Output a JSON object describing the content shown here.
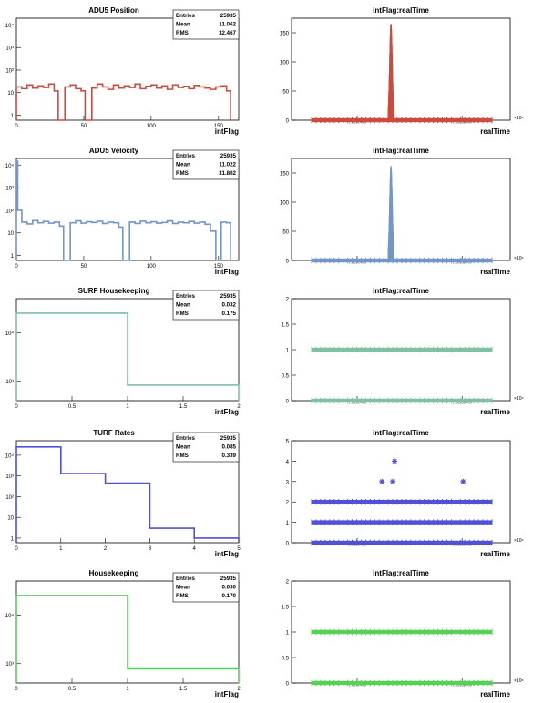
{
  "colors": {
    "red": "#cc4a3e",
    "blue_light": "#7396c8",
    "teal": "#7fc1a2",
    "purple": "#5050d8",
    "green": "#58d058",
    "axis": "#000000"
  },
  "chart_data": [
    {
      "type": "histogram",
      "title": "ADU5 Position",
      "xlabel": "intFlag",
      "ylabel": "",
      "log_y": true,
      "xlim": [
        0,
        165
      ],
      "ylim": [
        0.6,
        20000
      ],
      "x_ticks": [
        "0",
        "50",
        "100",
        "150"
      ],
      "x_tick_values": [
        0,
        50,
        100,
        150
      ],
      "y_ticks": [
        "1",
        "10",
        "10²",
        "10³",
        "10⁴"
      ],
      "y_tick_values": [
        1,
        10,
        100,
        1000,
        10000
      ],
      "stats": [
        {
          "label": "Entries",
          "value": "25935"
        },
        {
          "label": "Mean",
          "value": "11.062"
        },
        {
          "label": "RMS",
          "value": "32.467"
        }
      ],
      "color_key": "red",
      "bins": [
        {
          "x0": 0,
          "x1": 4,
          "y": 18
        },
        {
          "x0": 4,
          "x1": 8,
          "y": 15
        },
        {
          "x0": 8,
          "x1": 12,
          "y": 22
        },
        {
          "x0": 12,
          "x1": 16,
          "y": 16
        },
        {
          "x0": 16,
          "x1": 20,
          "y": 20
        },
        {
          "x0": 20,
          "x1": 24,
          "y": 17
        },
        {
          "x0": 24,
          "x1": 28,
          "y": 24
        },
        {
          "x0": 28,
          "x1": 31,
          "y": 12
        },
        {
          "x0": 31,
          "x1": 36,
          "y": 0.6
        },
        {
          "x0": 36,
          "x1": 40,
          "y": 18
        },
        {
          "x0": 40,
          "x1": 44,
          "y": 22
        },
        {
          "x0": 44,
          "x1": 48,
          "y": 15
        },
        {
          "x0": 48,
          "x1": 51,
          "y": 12
        },
        {
          "x0": 51,
          "x1": 56,
          "y": 0.6
        },
        {
          "x0": 56,
          "x1": 60,
          "y": 16
        },
        {
          "x0": 60,
          "x1": 64,
          "y": 24
        },
        {
          "x0": 64,
          "x1": 68,
          "y": 18
        },
        {
          "x0": 68,
          "x1": 72,
          "y": 14
        },
        {
          "x0": 72,
          "x1": 76,
          "y": 22
        },
        {
          "x0": 76,
          "x1": 80,
          "y": 16
        },
        {
          "x0": 80,
          "x1": 84,
          "y": 20
        },
        {
          "x0": 84,
          "x1": 88,
          "y": 17
        },
        {
          "x0": 88,
          "x1": 92,
          "y": 24
        },
        {
          "x0": 92,
          "x1": 96,
          "y": 15
        },
        {
          "x0": 96,
          "x1": 100,
          "y": 19
        },
        {
          "x0": 100,
          "x1": 104,
          "y": 22
        },
        {
          "x0": 104,
          "x1": 108,
          "y": 16
        },
        {
          "x0": 108,
          "x1": 112,
          "y": 20
        },
        {
          "x0": 112,
          "x1": 116,
          "y": 14
        },
        {
          "x0": 116,
          "x1": 120,
          "y": 22
        },
        {
          "x0": 120,
          "x1": 124,
          "y": 17
        },
        {
          "x0": 124,
          "x1": 128,
          "y": 19
        },
        {
          "x0": 128,
          "x1": 132,
          "y": 15
        },
        {
          "x0": 132,
          "x1": 136,
          "y": 21
        },
        {
          "x0": 136,
          "x1": 140,
          "y": 18
        },
        {
          "x0": 140,
          "x1": 144,
          "y": 16
        },
        {
          "x0": 144,
          "x1": 148,
          "y": 14
        },
        {
          "x0": 148,
          "x1": 152,
          "y": 18
        },
        {
          "x0": 152,
          "x1": 156,
          "y": 20
        },
        {
          "x0": 156,
          "x1": 159,
          "y": 12
        },
        {
          "x0": 159,
          "x1": 160,
          "y": 0.6
        }
      ]
    },
    {
      "type": "scatter",
      "title": "intFlag:realTime",
      "xlabel": "realTime",
      "ylabel": "",
      "ylim": [
        0,
        175
      ],
      "y_ticks": [
        "0",
        "50",
        "100",
        "150"
      ],
      "y_tick_values": [
        0,
        50,
        100,
        150
      ],
      "x_ticks": [
        "1.163e+09",
        "1.1635e+09"
      ],
      "x_tick_fractions": [
        0.3,
        0.78
      ],
      "x_exponent": "×10⁶",
      "color_key": "red",
      "baseline_y": [
        0
      ],
      "baseline_range": [
        0.0,
        1.0
      ],
      "spike": {
        "center": 0.44,
        "width": 0.03,
        "max": 163
      },
      "outliers": []
    },
    {
      "type": "histogram",
      "title": "ADU5 Velocity",
      "xlabel": "intFlag",
      "ylabel": "",
      "log_y": true,
      "xlim": [
        0,
        165
      ],
      "ylim": [
        0.6,
        20000
      ],
      "x_ticks": [
        "0",
        "50",
        "100",
        "150"
      ],
      "x_tick_values": [
        0,
        50,
        100,
        150
      ],
      "y_ticks": [
        "1",
        "10",
        "10²",
        "10³",
        "10⁴"
      ],
      "y_tick_values": [
        1,
        10,
        100,
        1000,
        10000
      ],
      "stats": [
        {
          "label": "Entries",
          "value": "25935"
        },
        {
          "label": "Mean",
          "value": "11.022"
        },
        {
          "label": "RMS",
          "value": "31.802"
        }
      ],
      "color_key": "blue_light",
      "bins": [
        {
          "x0": 0,
          "x1": 1,
          "y": 15000
        },
        {
          "x0": 1,
          "x1": 4,
          "y": 100
        },
        {
          "x0": 4,
          "x1": 8,
          "y": 30
        },
        {
          "x0": 8,
          "x1": 12,
          "y": 25
        },
        {
          "x0": 12,
          "x1": 16,
          "y": 35
        },
        {
          "x0": 16,
          "x1": 20,
          "y": 28
        },
        {
          "x0": 20,
          "x1": 24,
          "y": 32
        },
        {
          "x0": 24,
          "x1": 28,
          "y": 27
        },
        {
          "x0": 28,
          "x1": 32,
          "y": 30
        },
        {
          "x0": 32,
          "x1": 35,
          "y": 20
        },
        {
          "x0": 35,
          "x1": 40,
          "y": 0.6
        },
        {
          "x0": 40,
          "x1": 44,
          "y": 28
        },
        {
          "x0": 44,
          "x1": 48,
          "y": 34
        },
        {
          "x0": 48,
          "x1": 52,
          "y": 27
        },
        {
          "x0": 52,
          "x1": 56,
          "y": 31
        },
        {
          "x0": 56,
          "x1": 60,
          "y": 29
        },
        {
          "x0": 60,
          "x1": 64,
          "y": 33
        },
        {
          "x0": 64,
          "x1": 68,
          "y": 26
        },
        {
          "x0": 68,
          "x1": 72,
          "y": 30
        },
        {
          "x0": 72,
          "x1": 76,
          "y": 28
        },
        {
          "x0": 76,
          "x1": 79,
          "y": 18
        },
        {
          "x0": 79,
          "x1": 84,
          "y": 0.6
        },
        {
          "x0": 84,
          "x1": 88,
          "y": 30
        },
        {
          "x0": 88,
          "x1": 92,
          "y": 26
        },
        {
          "x0": 92,
          "x1": 96,
          "y": 33
        },
        {
          "x0": 96,
          "x1": 100,
          "y": 28
        },
        {
          "x0": 100,
          "x1": 104,
          "y": 31
        },
        {
          "x0": 104,
          "x1": 108,
          "y": 27
        },
        {
          "x0": 108,
          "x1": 112,
          "y": 29
        },
        {
          "x0": 112,
          "x1": 116,
          "y": 34
        },
        {
          "x0": 116,
          "x1": 120,
          "y": 26
        },
        {
          "x0": 120,
          "x1": 124,
          "y": 30
        },
        {
          "x0": 124,
          "x1": 128,
          "y": 28
        },
        {
          "x0": 128,
          "x1": 132,
          "y": 32
        },
        {
          "x0": 132,
          "x1": 136,
          "y": 27
        },
        {
          "x0": 136,
          "x1": 140,
          "y": 30
        },
        {
          "x0": 140,
          "x1": 144,
          "y": 24
        },
        {
          "x0": 144,
          "x1": 148,
          "y": 12
        },
        {
          "x0": 148,
          "x1": 152,
          "y": 0.6
        },
        {
          "x0": 152,
          "x1": 156,
          "y": 30
        },
        {
          "x0": 156,
          "x1": 159,
          "y": 28
        },
        {
          "x0": 159,
          "x1": 160,
          "y": 0.6
        }
      ]
    },
    {
      "type": "scatter",
      "title": "intFlag:realTime",
      "xlabel": "realTime",
      "ylabel": "",
      "ylim": [
        0,
        175
      ],
      "y_ticks": [
        "0",
        "50",
        "100",
        "150"
      ],
      "y_tick_values": [
        0,
        50,
        100,
        150
      ],
      "x_ticks": [
        "1.163e+09",
        "1.1635e+09"
      ],
      "x_tick_fractions": [
        0.3,
        0.78
      ],
      "x_exponent": "×10⁶",
      "color_key": "blue_light",
      "baseline_y": [
        0
      ],
      "baseline_range": [
        0.0,
        1.0
      ],
      "spike": {
        "center": 0.44,
        "width": 0.03,
        "max": 160
      },
      "outliers": []
    },
    {
      "type": "histogram",
      "title": "SURF Housekeeping",
      "xlabel": "intFlag",
      "ylabel": "",
      "log_y": true,
      "xlim": [
        0,
        2
      ],
      "ylim": [
        400,
        50000
      ],
      "x_ticks": [
        "0",
        "0.5",
        "1",
        "1.5",
        "2"
      ],
      "x_tick_values": [
        0,
        0.5,
        1,
        1.5,
        2
      ],
      "y_ticks": [
        "10³",
        "10⁴"
      ],
      "y_tick_values": [
        1000,
        10000
      ],
      "stats": [
        {
          "label": "Entries",
          "value": "25935"
        },
        {
          "label": "Mean",
          "value": "0.032"
        },
        {
          "label": "RMS",
          "value": "0.175"
        }
      ],
      "color_key": "teal",
      "bins": [
        {
          "x0": 0,
          "x1": 1,
          "y": 25100
        },
        {
          "x0": 1,
          "x1": 2,
          "y": 835
        }
      ]
    },
    {
      "type": "scatter",
      "title": "intFlag:realTime",
      "xlabel": "realTime",
      "ylabel": "",
      "ylim": [
        0,
        2
      ],
      "y_ticks": [
        "0",
        "0.5",
        "1",
        "1.5",
        "2"
      ],
      "y_tick_values": [
        0,
        0.5,
        1,
        1.5,
        2
      ],
      "x_ticks": [
        "1.163e+09",
        "1.1635e+09"
      ],
      "x_tick_fractions": [
        0.3,
        0.78
      ],
      "x_exponent": "×10⁶",
      "color_key": "teal",
      "baseline_y": [
        0,
        1
      ],
      "baseline_range": [
        0.0,
        1.0
      ],
      "spike": null,
      "outliers": []
    },
    {
      "type": "histogram",
      "title": "TURF Rates",
      "xlabel": "intFlag",
      "ylabel": "",
      "log_y": true,
      "xlim": [
        0,
        5
      ],
      "ylim": [
        0.6,
        50000
      ],
      "x_ticks": [
        "0",
        "1",
        "2",
        "3",
        "4",
        "5"
      ],
      "x_tick_values": [
        0,
        1,
        2,
        3,
        4,
        5
      ],
      "y_ticks": [
        "1",
        "10",
        "10²",
        "10³",
        "10⁴"
      ],
      "y_tick_values": [
        1,
        10,
        100,
        1000,
        10000
      ],
      "stats": [
        {
          "label": "Entries",
          "value": "25935"
        },
        {
          "label": "Mean",
          "value": "0.085"
        },
        {
          "label": "RMS",
          "value": "0.339"
        }
      ],
      "color_key": "purple",
      "bins": [
        {
          "x0": 0,
          "x1": 1,
          "y": 25000
        },
        {
          "x0": 1,
          "x1": 2,
          "y": 1300
        },
        {
          "x0": 2,
          "x1": 3,
          "y": 450
        },
        {
          "x0": 3,
          "x1": 4,
          "y": 3
        },
        {
          "x0": 4,
          "x1": 5,
          "y": 1
        }
      ]
    },
    {
      "type": "scatter",
      "title": "intFlag:realTime",
      "xlabel": "realTime",
      "ylabel": "",
      "ylim": [
        0,
        5
      ],
      "y_ticks": [
        "0",
        "1",
        "2",
        "3",
        "4",
        "5"
      ],
      "y_tick_values": [
        0,
        1,
        2,
        3,
        4,
        5
      ],
      "x_ticks": [
        "1.163e+09",
        "1.1635e+09"
      ],
      "x_tick_fractions": [
        0.3,
        0.78
      ],
      "x_exponent": "×10⁶",
      "color_key": "purple",
      "baseline_y": [
        0,
        1,
        2
      ],
      "baseline_range": [
        0.0,
        1.0
      ],
      "spike": null,
      "outliers": [
        {
          "x": 0.39,
          "y": 3
        },
        {
          "x": 0.46,
          "y": 4
        },
        {
          "x": 0.45,
          "y": 3
        },
        {
          "x": 0.84,
          "y": 3
        }
      ]
    },
    {
      "type": "histogram",
      "title": "Housekeeping",
      "xlabel": "intFlag",
      "ylabel": "",
      "log_y": true,
      "xlim": [
        0,
        2
      ],
      "ylim": [
        400,
        50000
      ],
      "x_ticks": [
        "0",
        "0.5",
        "1",
        "1.5",
        "2"
      ],
      "x_tick_values": [
        0,
        0.5,
        1,
        1.5,
        2
      ],
      "y_ticks": [
        "10³",
        "10⁴"
      ],
      "y_tick_values": [
        1000,
        10000
      ],
      "stats": [
        {
          "label": "Entries",
          "value": "25935"
        },
        {
          "label": "Mean",
          "value": "0.030"
        },
        {
          "label": "RMS",
          "value": "0.170"
        }
      ],
      "color_key": "green",
      "bins": [
        {
          "x0": 0,
          "x1": 1,
          "y": 25150
        },
        {
          "x0": 1,
          "x1": 2,
          "y": 780
        }
      ]
    },
    {
      "type": "scatter",
      "title": "intFlag:realTime",
      "xlabel": "realTime",
      "ylabel": "",
      "ylim": [
        0,
        2
      ],
      "y_ticks": [
        "0",
        "0.5",
        "1",
        "1.5",
        "2"
      ],
      "y_tick_values": [
        0,
        0.5,
        1,
        1.5,
        2
      ],
      "x_ticks": [
        "1.163e+09",
        "1.1635e+09"
      ],
      "x_tick_fractions": [
        0.3,
        0.78
      ],
      "x_exponent": "×10⁶",
      "color_key": "green",
      "baseline_y": [
        0,
        1
      ],
      "baseline_range": [
        0.0,
        1.0
      ],
      "spike": null,
      "outliers": []
    }
  ]
}
